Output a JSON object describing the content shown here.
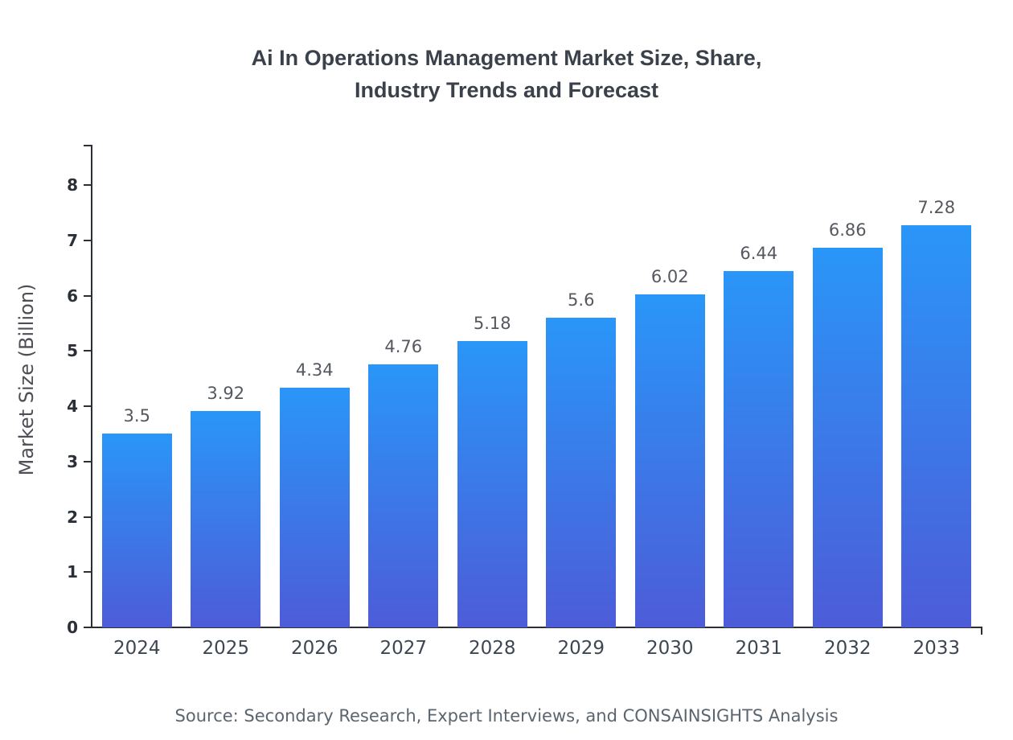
{
  "title_lines": [
    "Ai In Operations Management Market Size, Share,",
    "Industry Trends and Forecast"
  ],
  "source_note": "Source: Secondary Research, Expert Interviews, and CONSAINSIGHTS Analysis",
  "chart_data": {
    "type": "bar",
    "title": "Ai In Operations Management Market Size, Share, Industry Trends and Forecast",
    "categories": [
      "2024",
      "2025",
      "2026",
      "2027",
      "2028",
      "2029",
      "2030",
      "2031",
      "2032",
      "2033"
    ],
    "values": [
      3.5,
      3.92,
      4.34,
      4.76,
      5.18,
      5.6,
      6.02,
      6.44,
      6.86,
      7.28
    ],
    "value_labels": [
      "3.5",
      "3.92",
      "4.34",
      "4.76",
      "5.18",
      "5.6",
      "6.02",
      "6.44",
      "6.86",
      "7.28"
    ],
    "xlabel": "",
    "ylabel": "Market Size (Billion)",
    "ylim": [
      0,
      8
    ],
    "y_ticks": [
      0,
      1,
      2,
      3,
      4,
      5,
      6,
      7,
      8
    ],
    "grid": false,
    "legend": "none",
    "bar_gradient_top": "#2a96f8",
    "bar_gradient_bottom": "#4d5cd8"
  }
}
